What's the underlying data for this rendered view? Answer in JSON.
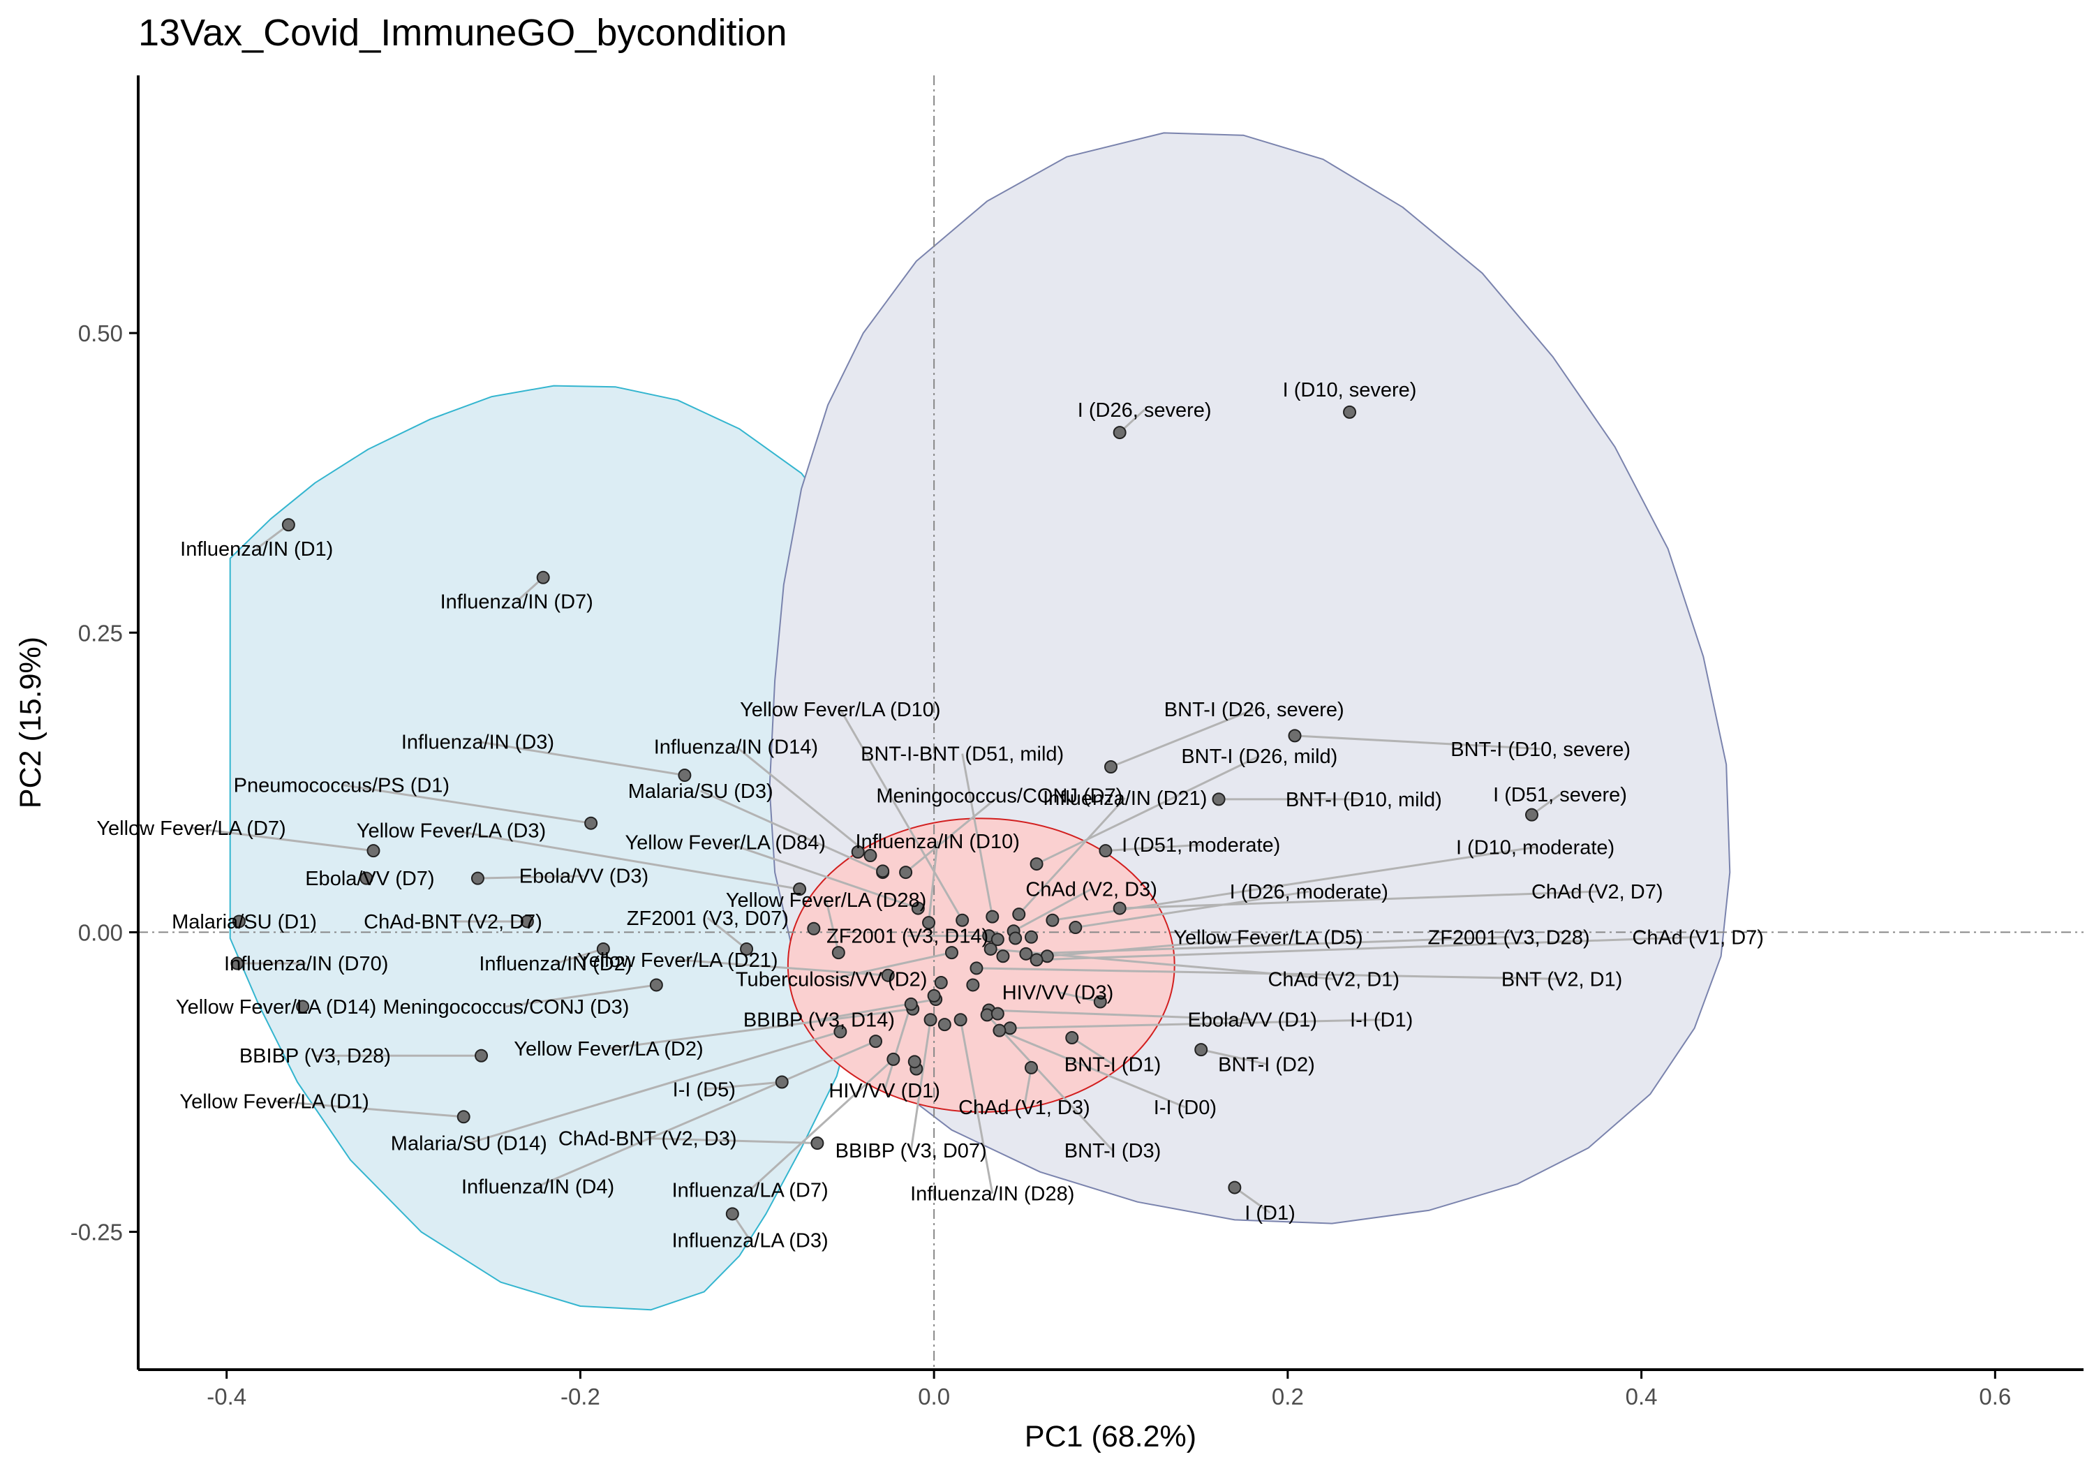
{
  "chart_data": {
    "type": "scatter",
    "title": "13Vax_Covid_ImmuneGO_bycondition",
    "xlabel": "PC1 (68.2%)",
    "ylabel": "PC2 (15.9%)",
    "xlim": [
      -0.45,
      0.65
    ],
    "ylim": [
      -0.365,
      0.715
    ],
    "x_ticks": [
      -0.4,
      -0.2,
      0.0,
      0.2,
      0.4,
      0.6
    ],
    "x_tick_labels": [
      "-0.4",
      "-0.2",
      "0.0",
      "0.2",
      "0.4",
      "0.6"
    ],
    "y_ticks": [
      -0.25,
      0.0,
      0.25,
      0.5
    ],
    "y_tick_labels": [
      "-0.25",
      "0.00",
      "0.25",
      "0.50"
    ],
    "reference_lines": {
      "x": 0,
      "y": 0,
      "style": "dash-dot"
    },
    "grid": false,
    "legend": "none",
    "colors": {
      "point_fill": "#6e6e6e",
      "point_stroke": "#222222",
      "leader_line": "#b3b3b3",
      "cyan_fill": "#dcedf4",
      "cyan_stroke": "#33b5cf",
      "blue_fill": "#e6e8f0",
      "blue_stroke": "#7a83ad",
      "red_fill": "#fad0d0",
      "red_stroke": "#d21f1f",
      "refline": "#888888"
    },
    "ellipses": [
      {
        "name": "cyan",
        "points": [
          [
            -0.398,
            0.312
          ],
          [
            -0.375,
            0.345
          ],
          [
            -0.35,
            0.375
          ],
          [
            -0.32,
            0.403
          ],
          [
            -0.285,
            0.428
          ],
          [
            -0.25,
            0.447
          ],
          [
            -0.215,
            0.456
          ],
          [
            -0.18,
            0.455
          ],
          [
            -0.145,
            0.444
          ],
          [
            -0.11,
            0.42
          ],
          [
            -0.075,
            0.383
          ],
          [
            -0.05,
            0.335
          ],
          [
            -0.033,
            0.28
          ],
          [
            -0.027,
            0.22
          ],
          [
            -0.03,
            0.165
          ],
          [
            -0.036,
            0.1
          ],
          [
            -0.04,
            0.06
          ],
          [
            -0.04,
            0.0
          ],
          [
            -0.044,
            -0.06
          ],
          [
            -0.055,
            -0.12
          ],
          [
            -0.075,
            -0.18
          ],
          [
            -0.095,
            -0.235
          ],
          [
            -0.11,
            -0.27
          ],
          [
            -0.13,
            -0.3
          ],
          [
            -0.16,
            -0.315
          ],
          [
            -0.2,
            -0.312
          ],
          [
            -0.245,
            -0.292
          ],
          [
            -0.29,
            -0.25
          ],
          [
            -0.33,
            -0.19
          ],
          [
            -0.36,
            -0.125
          ],
          [
            -0.382,
            -0.06
          ],
          [
            -0.398,
            -0.005
          ],
          [
            -0.398,
            0.312
          ]
        ]
      },
      {
        "name": "blue",
        "points": [
          [
            0.13,
            0.667
          ],
          [
            0.175,
            0.665
          ],
          [
            0.22,
            0.645
          ],
          [
            0.265,
            0.605
          ],
          [
            0.31,
            0.55
          ],
          [
            0.35,
            0.48
          ],
          [
            0.385,
            0.405
          ],
          [
            0.415,
            0.32
          ],
          [
            0.435,
            0.23
          ],
          [
            0.448,
            0.14
          ],
          [
            0.45,
            0.05
          ],
          [
            0.445,
            -0.02
          ],
          [
            0.43,
            -0.08
          ],
          [
            0.405,
            -0.135
          ],
          [
            0.37,
            -0.18
          ],
          [
            0.33,
            -0.21
          ],
          [
            0.28,
            -0.232
          ],
          [
            0.225,
            -0.243
          ],
          [
            0.17,
            -0.24
          ],
          [
            0.115,
            -0.225
          ],
          [
            0.06,
            -0.2
          ],
          [
            0.01,
            -0.165
          ],
          [
            -0.03,
            -0.12
          ],
          [
            -0.06,
            -0.07
          ],
          [
            -0.08,
            -0.015
          ],
          [
            -0.09,
            0.05
          ],
          [
            -0.093,
            0.12
          ],
          [
            -0.09,
            0.21
          ],
          [
            -0.085,
            0.29
          ],
          [
            -0.075,
            0.37
          ],
          [
            -0.06,
            0.44
          ],
          [
            -0.04,
            0.5
          ],
          [
            -0.01,
            0.56
          ],
          [
            0.03,
            0.61
          ],
          [
            0.075,
            0.647
          ],
          [
            0.13,
            0.667
          ]
        ]
      },
      {
        "name": "red",
        "cx": 0.0267,
        "cy": -0.0275,
        "rx": 0.1093,
        "ry": 0.1225
      }
    ],
    "points": [
      {
        "label": "Influenza/IN (D1)",
        "x": -0.365,
        "y": 0.34,
        "lx": -0.383,
        "ly": 0.32
      },
      {
        "label": "Influenza/IN (D7)",
        "x": -0.221,
        "y": 0.296,
        "lx": -0.236,
        "ly": 0.276
      },
      {
        "label": "Influenza/IN (D3)",
        "x": -0.141,
        "y": 0.131,
        "lx": -0.258,
        "ly": 0.159
      },
      {
        "label": "Influenza/IN (D14)",
        "x": -0.036,
        "y": 0.064,
        "lx": -0.112,
        "ly": 0.155
      },
      {
        "label": "Pneumococcus/PS (D1)",
        "x": -0.194,
        "y": 0.091,
        "lx": -0.335,
        "ly": 0.123
      },
      {
        "label": "Malaria/SU (D3)",
        "x": -0.029,
        "y": 0.05,
        "lx": -0.132,
        "ly": 0.118
      },
      {
        "label": "Meningococcus/CONJ (D7)",
        "x": -0.016,
        "y": 0.05,
        "lx": 0.037,
        "ly": 0.114
      },
      {
        "label": "Yellow Fever/LA (D7)",
        "x": -0.317,
        "y": 0.068,
        "lx": -0.42,
        "ly": 0.087
      },
      {
        "label": "Yellow Fever/LA (D3)",
        "x": -0.076,
        "y": 0.036,
        "lx": -0.273,
        "ly": 0.085
      },
      {
        "label": "Yellow Fever/LA (D84)",
        "x": -0.009,
        "y": 0.02,
        "lx": -0.118,
        "ly": 0.075
      },
      {
        "label": "Influenza/IN (D10)",
        "x": -0.003,
        "y": 0.008,
        "lx": 0.002,
        "ly": 0.076
      },
      {
        "label": "Yellow Fever/LA (D10)",
        "x": 0.016,
        "y": 0.01,
        "lx": -0.053,
        "ly": 0.186
      },
      {
        "label": "BNT-I-BNT (D51, mild)",
        "x": 0.033,
        "y": 0.013,
        "lx": 0.016,
        "ly": 0.149
      },
      {
        "label": "Influenza/IN (D21)",
        "x": 0.048,
        "y": 0.015,
        "lx": 0.108,
        "ly": 0.112
      },
      {
        "label": "BNT-I (D26, severe)",
        "x": 0.1,
        "y": 0.138,
        "lx": 0.181,
        "ly": 0.186
      },
      {
        "label": "BNT-I (D26, mild)",
        "x": 0.058,
        "y": 0.057,
        "lx": 0.184,
        "ly": 0.147
      },
      {
        "label": "BNT-I (D10, severe)",
        "x": 0.204,
        "y": 0.164,
        "lx": 0.343,
        "ly": 0.153
      },
      {
        "label": "BNT-I (D10, mild)",
        "x": 0.161,
        "y": 0.111,
        "lx": 0.243,
        "ly": 0.111
      },
      {
        "label": "I (D51, severe)",
        "x": 0.338,
        "y": 0.098,
        "lx": 0.354,
        "ly": 0.115
      },
      {
        "label": "I (D51, moderate)",
        "x": 0.097,
        "y": 0.068,
        "lx": 0.151,
        "ly": 0.073
      },
      {
        "label": "I (D10, moderate)",
        "x": 0.067,
        "y": 0.01,
        "lx": 0.34,
        "ly": 0.071
      },
      {
        "label": "ChAd (V2, D3)",
        "x": 0.045,
        "y": 0.001,
        "lx": 0.089,
        "ly": 0.036
      },
      {
        "label": "I (D26, moderate)",
        "x": 0.08,
        "y": 0.004,
        "lx": 0.212,
        "ly": 0.034
      },
      {
        "label": "ChAd (V2, D7)",
        "x": 0.105,
        "y": 0.02,
        "lx": 0.375,
        "ly": 0.034
      },
      {
        "label": "Ebola/VV (D7)",
        "x": -0.321,
        "y": 0.045,
        "lx": -0.319,
        "ly": 0.045
      },
      {
        "label": "Ebola/VV (D3)",
        "x": -0.258,
        "y": 0.045,
        "lx": -0.198,
        "ly": 0.047
      },
      {
        "label": "Yellow Fever/LA (D28)",
        "x": -0.054,
        "y": -0.017,
        "lx": -0.061,
        "ly": 0.027
      },
      {
        "label": "Malaria/SU (D1)",
        "x": -0.393,
        "y": 0.009,
        "lx": -0.39,
        "ly": 0.009
      },
      {
        "label": "ChAd-BNT (V2, D7)",
        "x": -0.23,
        "y": 0.009,
        "lx": -0.272,
        "ly": 0.009
      },
      {
        "label": "ZF2001 (V3, D07)",
        "x": -0.106,
        "y": -0.014,
        "lx": -0.128,
        "ly": 0.012
      },
      {
        "label": "ZF2001 (V3, D14)",
        "x": 0.031,
        "y": -0.003,
        "lx": -0.015,
        "ly": -0.003
      },
      {
        "label": "Yellow Fever/LA (D5)",
        "x": 0.064,
        "y": -0.02,
        "lx": 0.189,
        "ly": -0.004
      },
      {
        "label": "ZF2001 (V3, D28)",
        "x": 0.052,
        "y": -0.018,
        "lx": 0.325,
        "ly": -0.004
      },
      {
        "label": "ChAd (V1, D7)",
        "x": 0.058,
        "y": -0.023,
        "lx": 0.432,
        "ly": -0.004
      },
      {
        "label": "Influenza/IN (D70)",
        "x": -0.394,
        "y": -0.026,
        "lx": -0.355,
        "ly": -0.026
      },
      {
        "label": "Influenza/IN (D2)",
        "x": -0.187,
        "y": -0.014,
        "lx": -0.214,
        "ly": -0.026
      },
      {
        "label": "Yellow Fever/LA (D21)",
        "x": -0.026,
        "y": -0.036,
        "lx": -0.145,
        "ly": -0.023
      },
      {
        "label": "Tuberculosis/VV (D2)",
        "x": 0.01,
        "y": -0.017,
        "lx": -0.058,
        "ly": -0.039
      },
      {
        "label": "ChAd (V2, D1)",
        "x": 0.032,
        "y": -0.014,
        "lx": 0.226,
        "ly": -0.039
      },
      {
        "label": "BNT (V2, D1)",
        "x": 0.024,
        "y": -0.03,
        "lx": 0.355,
        "ly": -0.039
      },
      {
        "label": "HIV/VV (D3)",
        "x": 0.094,
        "y": -0.058,
        "lx": 0.07,
        "ly": -0.05
      },
      {
        "label": "Yellow Fever/LA (D14)",
        "x": -0.357,
        "y": -0.062,
        "lx": -0.372,
        "ly": -0.062
      },
      {
        "label": "Meningococcus/CONJ (D3)",
        "x": -0.157,
        "y": -0.044,
        "lx": -0.242,
        "ly": -0.062
      },
      {
        "label": "Ebola/VV (D1)",
        "x": 0.031,
        "y": -0.065,
        "lx": 0.18,
        "ly": -0.073
      },
      {
        "label": "I-I (D1)",
        "x": 0.043,
        "y": -0.08,
        "lx": 0.253,
        "ly": -0.073
      },
      {
        "label": "BBIBP (V3, D14)",
        "x": 0.001,
        "y": -0.056,
        "lx": -0.065,
        "ly": -0.073
      },
      {
        "label": "Yellow Fever/LA (D2)",
        "x": -0.012,
        "y": -0.064,
        "lx": -0.184,
        "ly": -0.097
      },
      {
        "label": "BBIBP (V3, D28)",
        "x": -0.256,
        "y": -0.103,
        "lx": -0.35,
        "ly": -0.103
      },
      {
        "label": "BNT-I (D1)",
        "x": 0.078,
        "y": -0.088,
        "lx": 0.101,
        "ly": -0.11
      },
      {
        "label": "BNT-I (D2)",
        "x": 0.151,
        "y": -0.098,
        "lx": 0.188,
        "ly": -0.11
      },
      {
        "label": "I-I (D5)",
        "x": -0.086,
        "y": -0.125,
        "lx": -0.13,
        "ly": -0.131
      },
      {
        "label": "HIV/VV (D1)",
        "x": -0.013,
        "y": -0.06,
        "lx": -0.028,
        "ly": -0.132
      },
      {
        "label": "Yellow Fever/LA (D1)",
        "x": -0.266,
        "y": -0.154,
        "lx": -0.373,
        "ly": -0.141
      },
      {
        "label": "ChAd (V1, D3)",
        "x": 0.055,
        "y": -0.113,
        "lx": 0.051,
        "ly": -0.146
      },
      {
        "label": "I-I (D0)",
        "x": 0.037,
        "y": -0.082,
        "lx": 0.142,
        "ly": -0.146
      },
      {
        "label": "Malaria/SU (D14)",
        "x": -0.053,
        "y": -0.083,
        "lx": -0.263,
        "ly": -0.176
      },
      {
        "label": "ChAd-BNT (V2, D3)",
        "x": -0.066,
        "y": -0.176,
        "lx": -0.162,
        "ly": -0.172
      },
      {
        "label": "BBIBP (V3, D07)",
        "x": -0.002,
        "y": -0.073,
        "lx": -0.013,
        "ly": -0.182
      },
      {
        "label": "BNT-I (D3)",
        "x": 0.03,
        "y": -0.069,
        "lx": 0.101,
        "ly": -0.182
      },
      {
        "label": "Influenza/IN (D4)",
        "x": -0.033,
        "y": -0.091,
        "lx": -0.224,
        "ly": -0.212
      },
      {
        "label": "Influenza/LA (D7)",
        "x": -0.023,
        "y": -0.106,
        "lx": -0.104,
        "ly": -0.215
      },
      {
        "label": "Influenza/IN (D28)",
        "x": 0.015,
        "y": -0.073,
        "lx": 0.033,
        "ly": -0.218
      },
      {
        "label": "I (D1)",
        "x": 0.17,
        "y": -0.213,
        "lx": 0.19,
        "ly": -0.234
      },
      {
        "label": "Influenza/LA (D3)",
        "x": -0.114,
        "y": -0.235,
        "lx": -0.104,
        "ly": -0.257
      },
      {
        "label": "I (D26, severe)",
        "x": 0.105,
        "y": 0.417,
        "lx": 0.119,
        "ly": 0.436
      },
      {
        "label": "I (D10, severe)",
        "x": 0.235,
        "y": 0.434,
        "lx": 0.235,
        "ly": 0.453
      }
    ],
    "extra_markers": [
      {
        "x": -0.043,
        "y": 0.067
      },
      {
        "x": -0.029,
        "y": 0.051
      },
      {
        "x": -0.068,
        "y": 0.003
      },
      {
        "x": 0.055,
        "y": -0.004
      },
      {
        "x": 0.046,
        "y": -0.005
      },
      {
        "x": 0.036,
        "y": -0.006
      },
      {
        "x": 0.039,
        "y": -0.02
      },
      {
        "x": 0.022,
        "y": -0.044
      },
      {
        "x": 0.036,
        "y": -0.068
      },
      {
        "x": 0.006,
        "y": -0.077
      },
      {
        "x": -0.01,
        "y": -0.114
      },
      {
        "x": -0.011,
        "y": -0.108
      },
      {
        "x": 0.004,
        "y": -0.042
      },
      {
        "x": 0.0,
        "y": -0.053
      }
    ]
  }
}
